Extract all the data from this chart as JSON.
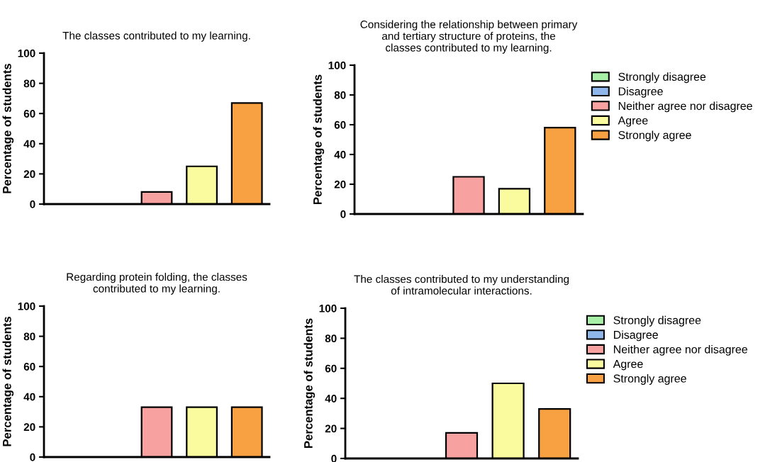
{
  "chart_data": [
    {
      "type": "bar",
      "title": "The classes contributed to my learning.",
      "ylabel": "Percentage of students",
      "categories": [
        null,
        null,
        null,
        null,
        null
      ],
      "ylim": [
        0,
        100
      ],
      "yticks": [
        0,
        20,
        40,
        60,
        80,
        100
      ],
      "tick_labels": "y",
      "grid": false,
      "legend": false,
      "series": [
        {
          "color": "#a8f0a8",
          "values": [
            0,
            null,
            null,
            null,
            null
          ]
        },
        {
          "color": "#8eb6ea",
          "values": [
            null,
            0,
            null,
            null,
            null
          ]
        },
        {
          "color": "#f7a1a1",
          "values": [
            null,
            null,
            8,
            null,
            null
          ]
        },
        {
          "color": "#fafa9e",
          "values": [
            null,
            null,
            null,
            25,
            null
          ]
        },
        {
          "color": "#f8a142",
          "values": [
            null,
            null,
            null,
            null,
            67
          ]
        }
      ]
    },
    {
      "type": "bar",
      "title": "Considering the relationship between primary\nand tertiary structure of proteins, the\nclasses contributed to my learning.",
      "ylabel": "Percentage of students",
      "categories": [
        null,
        null,
        null,
        null,
        null
      ],
      "ylim": [
        0,
        100
      ],
      "yticks": [
        0,
        20,
        40,
        60,
        80,
        100
      ],
      "tick_labels": "y",
      "grid": false,
      "legend": "right",
      "series": [
        {
          "name": "Strongly disagree",
          "color": "#a8f0a8",
          "values": [
            0,
            null,
            null,
            null,
            null
          ]
        },
        {
          "name": "Disagree",
          "color": "#8eb6ea",
          "values": [
            null,
            0,
            null,
            null,
            null
          ]
        },
        {
          "name": "Neither agree nor disagree",
          "color": "#f7a1a1",
          "values": [
            null,
            null,
            25,
            null,
            null
          ]
        },
        {
          "name": "Agree",
          "color": "#fafa9e",
          "values": [
            null,
            null,
            null,
            17,
            null
          ]
        },
        {
          "name": "Strongly agree",
          "color": "#f8a142",
          "values": [
            null,
            null,
            null,
            null,
            58
          ]
        }
      ]
    },
    {
      "type": "bar",
      "title": "Regarding protein folding, the classes\ncontributed to my learning.",
      "ylabel": "Percentage of students",
      "categories": [
        null,
        null,
        null,
        null,
        null
      ],
      "ylim": [
        0,
        100
      ],
      "yticks": [
        0,
        20,
        40,
        60,
        80,
        100
      ],
      "tick_labels": "y",
      "grid": false,
      "legend": false,
      "series": [
        {
          "color": "#a8f0a8",
          "values": [
            0,
            null,
            null,
            null,
            null
          ]
        },
        {
          "color": "#8eb6ea",
          "values": [
            null,
            0,
            null,
            null,
            null
          ]
        },
        {
          "color": "#f7a1a1",
          "values": [
            null,
            null,
            33,
            null,
            null
          ]
        },
        {
          "color": "#fafa9e",
          "values": [
            null,
            null,
            null,
            33,
            null
          ]
        },
        {
          "color": "#f8a142",
          "values": [
            null,
            null,
            null,
            null,
            33
          ]
        }
      ]
    },
    {
      "type": "bar",
      "title": "The classes contributed to my understanding\nof intramolecular interactions.",
      "ylabel": "Percentage of students",
      "categories": [
        null,
        null,
        null,
        null,
        null
      ],
      "ylim": [
        0,
        100
      ],
      "yticks": [
        0,
        20,
        40,
        60,
        80,
        100
      ],
      "tick_labels": "y",
      "grid": false,
      "legend": "right",
      "series": [
        {
          "name": "Strongly disagree",
          "color": "#a8f0a8",
          "values": [
            0,
            null,
            null,
            null,
            null
          ]
        },
        {
          "name": "Disagree",
          "color": "#8eb6ea",
          "values": [
            null,
            0,
            null,
            null,
            null
          ]
        },
        {
          "name": "Neither agree nor disagree",
          "color": "#f7a1a1",
          "values": [
            null,
            null,
            17,
            null,
            null
          ]
        },
        {
          "name": "Agree",
          "color": "#fafa9e",
          "values": [
            null,
            null,
            null,
            50,
            null
          ]
        },
        {
          "name": "Strongly agree",
          "color": "#f8a142",
          "values": [
            null,
            null,
            null,
            null,
            33
          ]
        }
      ]
    }
  ]
}
